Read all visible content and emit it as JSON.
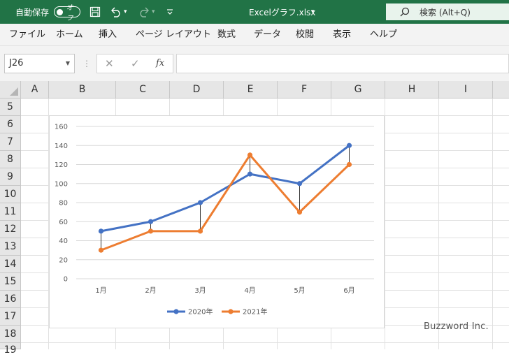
{
  "titlebar": {
    "autosave_label": "自動保存",
    "autosave_state": "オフ",
    "document_title": "Excelグラフ.xlsx",
    "search_label": "検索 (Alt+Q)",
    "brand_color": "#217346"
  },
  "menu": [
    "ファイル",
    "ホーム",
    "挿入",
    "ページ レイアウト",
    "数式",
    "データ",
    "校閲",
    "表示",
    "ヘルプ"
  ],
  "formula_bar": {
    "name_box": "J26",
    "cancel_glyph": "✕",
    "enter_glyph": "✓",
    "fx_label": "fx",
    "formula_value": ""
  },
  "grid": {
    "columns": [
      "A",
      "B",
      "C",
      "D",
      "E",
      "F",
      "G",
      "H",
      "I"
    ],
    "rows": [
      "5",
      "6",
      "7",
      "8",
      "9",
      "10",
      "11",
      "12",
      "13",
      "14",
      "15",
      "16",
      "17",
      "18",
      "19"
    ]
  },
  "chart_data": {
    "type": "line",
    "categories": [
      "1月",
      "2月",
      "3月",
      "4月",
      "5月",
      "6月"
    ],
    "series": [
      {
        "name": "2020年",
        "values": [
          50,
          60,
          80,
          110,
          100,
          140
        ],
        "color": "#4472c4"
      },
      {
        "name": "2021年",
        "values": [
          30,
          50,
          50,
          130,
          70,
          120
        ],
        "color": "#ed7d31"
      }
    ],
    "y_ticks": [
      "0",
      "20",
      "40",
      "60",
      "80",
      "100",
      "120",
      "140",
      "160"
    ],
    "ylim": [
      0,
      160
    ],
    "grid": true,
    "high_low_lines": true,
    "legend_position": "bottom"
  },
  "watermark": "Buzzword Inc."
}
